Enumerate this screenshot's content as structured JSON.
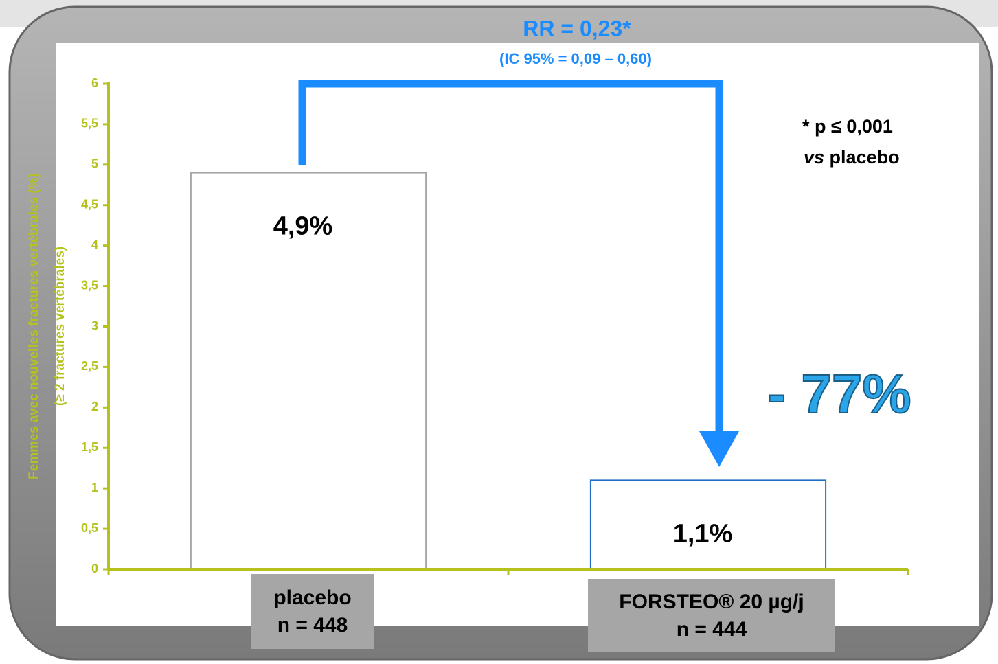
{
  "chart_data": {
    "type": "bar",
    "ylabel": "Femmes avec nouvelles fractures vertébrales (%)",
    "ylabel2": "(≥ 2 fractures vertébrales)",
    "categories": [
      "placebo\nn = 448",
      "FORSTEO® 20 µg/j\nn = 444"
    ],
    "values": [
      4.9,
      1.1
    ],
    "value_labels": [
      "4,9%",
      "1,1%"
    ],
    "colors": [
      "#a6a6a6",
      "#1f6fc5"
    ],
    "ylim": [
      0,
      6
    ],
    "yticks": [
      0,
      {
        "value": 0.5,
        "label": "0,5"
      },
      1,
      {
        "value": 1.5,
        "label": "1,5"
      },
      2,
      {
        "value": 2.5,
        "label": "2,5"
      },
      3,
      {
        "value": 3.5,
        "label": "3,5"
      },
      4,
      {
        "value": 4.5,
        "label": "4,5"
      },
      5,
      {
        "value": 5.5,
        "label": "5,5"
      },
      6
    ],
    "annotations": {
      "rr": "RR = 0,23*",
      "ci": "(IC 95% = 0,09 – 0,60)",
      "p": "* p ≤ 0,001",
      "vs": "vs",
      "vs_rest": " placebo",
      "reduction": "- 77%"
    }
  }
}
